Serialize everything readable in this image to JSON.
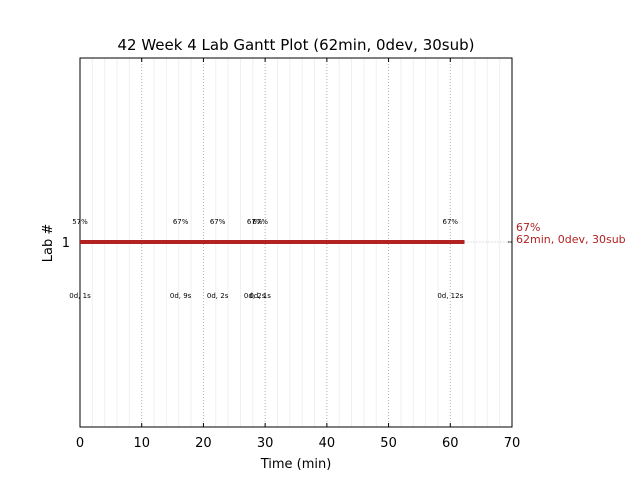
{
  "chart_data": {
    "type": "gantt",
    "title": "42 Week 4 Lab Gantt Plot (62min, 0dev, 30sub)",
    "xlabel": "Time (min)",
    "ylabel": "Lab #",
    "xlim": [
      0,
      70
    ],
    "x_ticks": [
      0,
      10,
      20,
      30,
      40,
      50,
      60,
      70
    ],
    "x_tick_labels": [
      "0",
      "10",
      "20",
      "30",
      "40",
      "50",
      "60",
      "70"
    ],
    "y_ticks": [
      1
    ],
    "y_tick_labels": [
      "1"
    ],
    "grid": "vertical dotted",
    "bar_color": "#b22222",
    "bars": [
      {
        "lab": 1,
        "start": 0,
        "end": 62.3
      }
    ],
    "events": [
      {
        "x": 0,
        "percent": "57%",
        "time": "0d, 1s"
      },
      {
        "x": 16.3,
        "percent": "67%",
        "time": "0d, 9s"
      },
      {
        "x": 22.3,
        "percent": "67%",
        "time": "0d, 2s"
      },
      {
        "x": 28.3,
        "percent": "67%",
        "time": "0d, 2s"
      },
      {
        "x": 29.2,
        "percent": "67%",
        "time": "0d, 1s"
      },
      {
        "x": 60.0,
        "percent": "67%",
        "time": "0d, 12s"
      }
    ],
    "end_labels": [
      "67%",
      "62min, 0dev, 30sub"
    ]
  }
}
